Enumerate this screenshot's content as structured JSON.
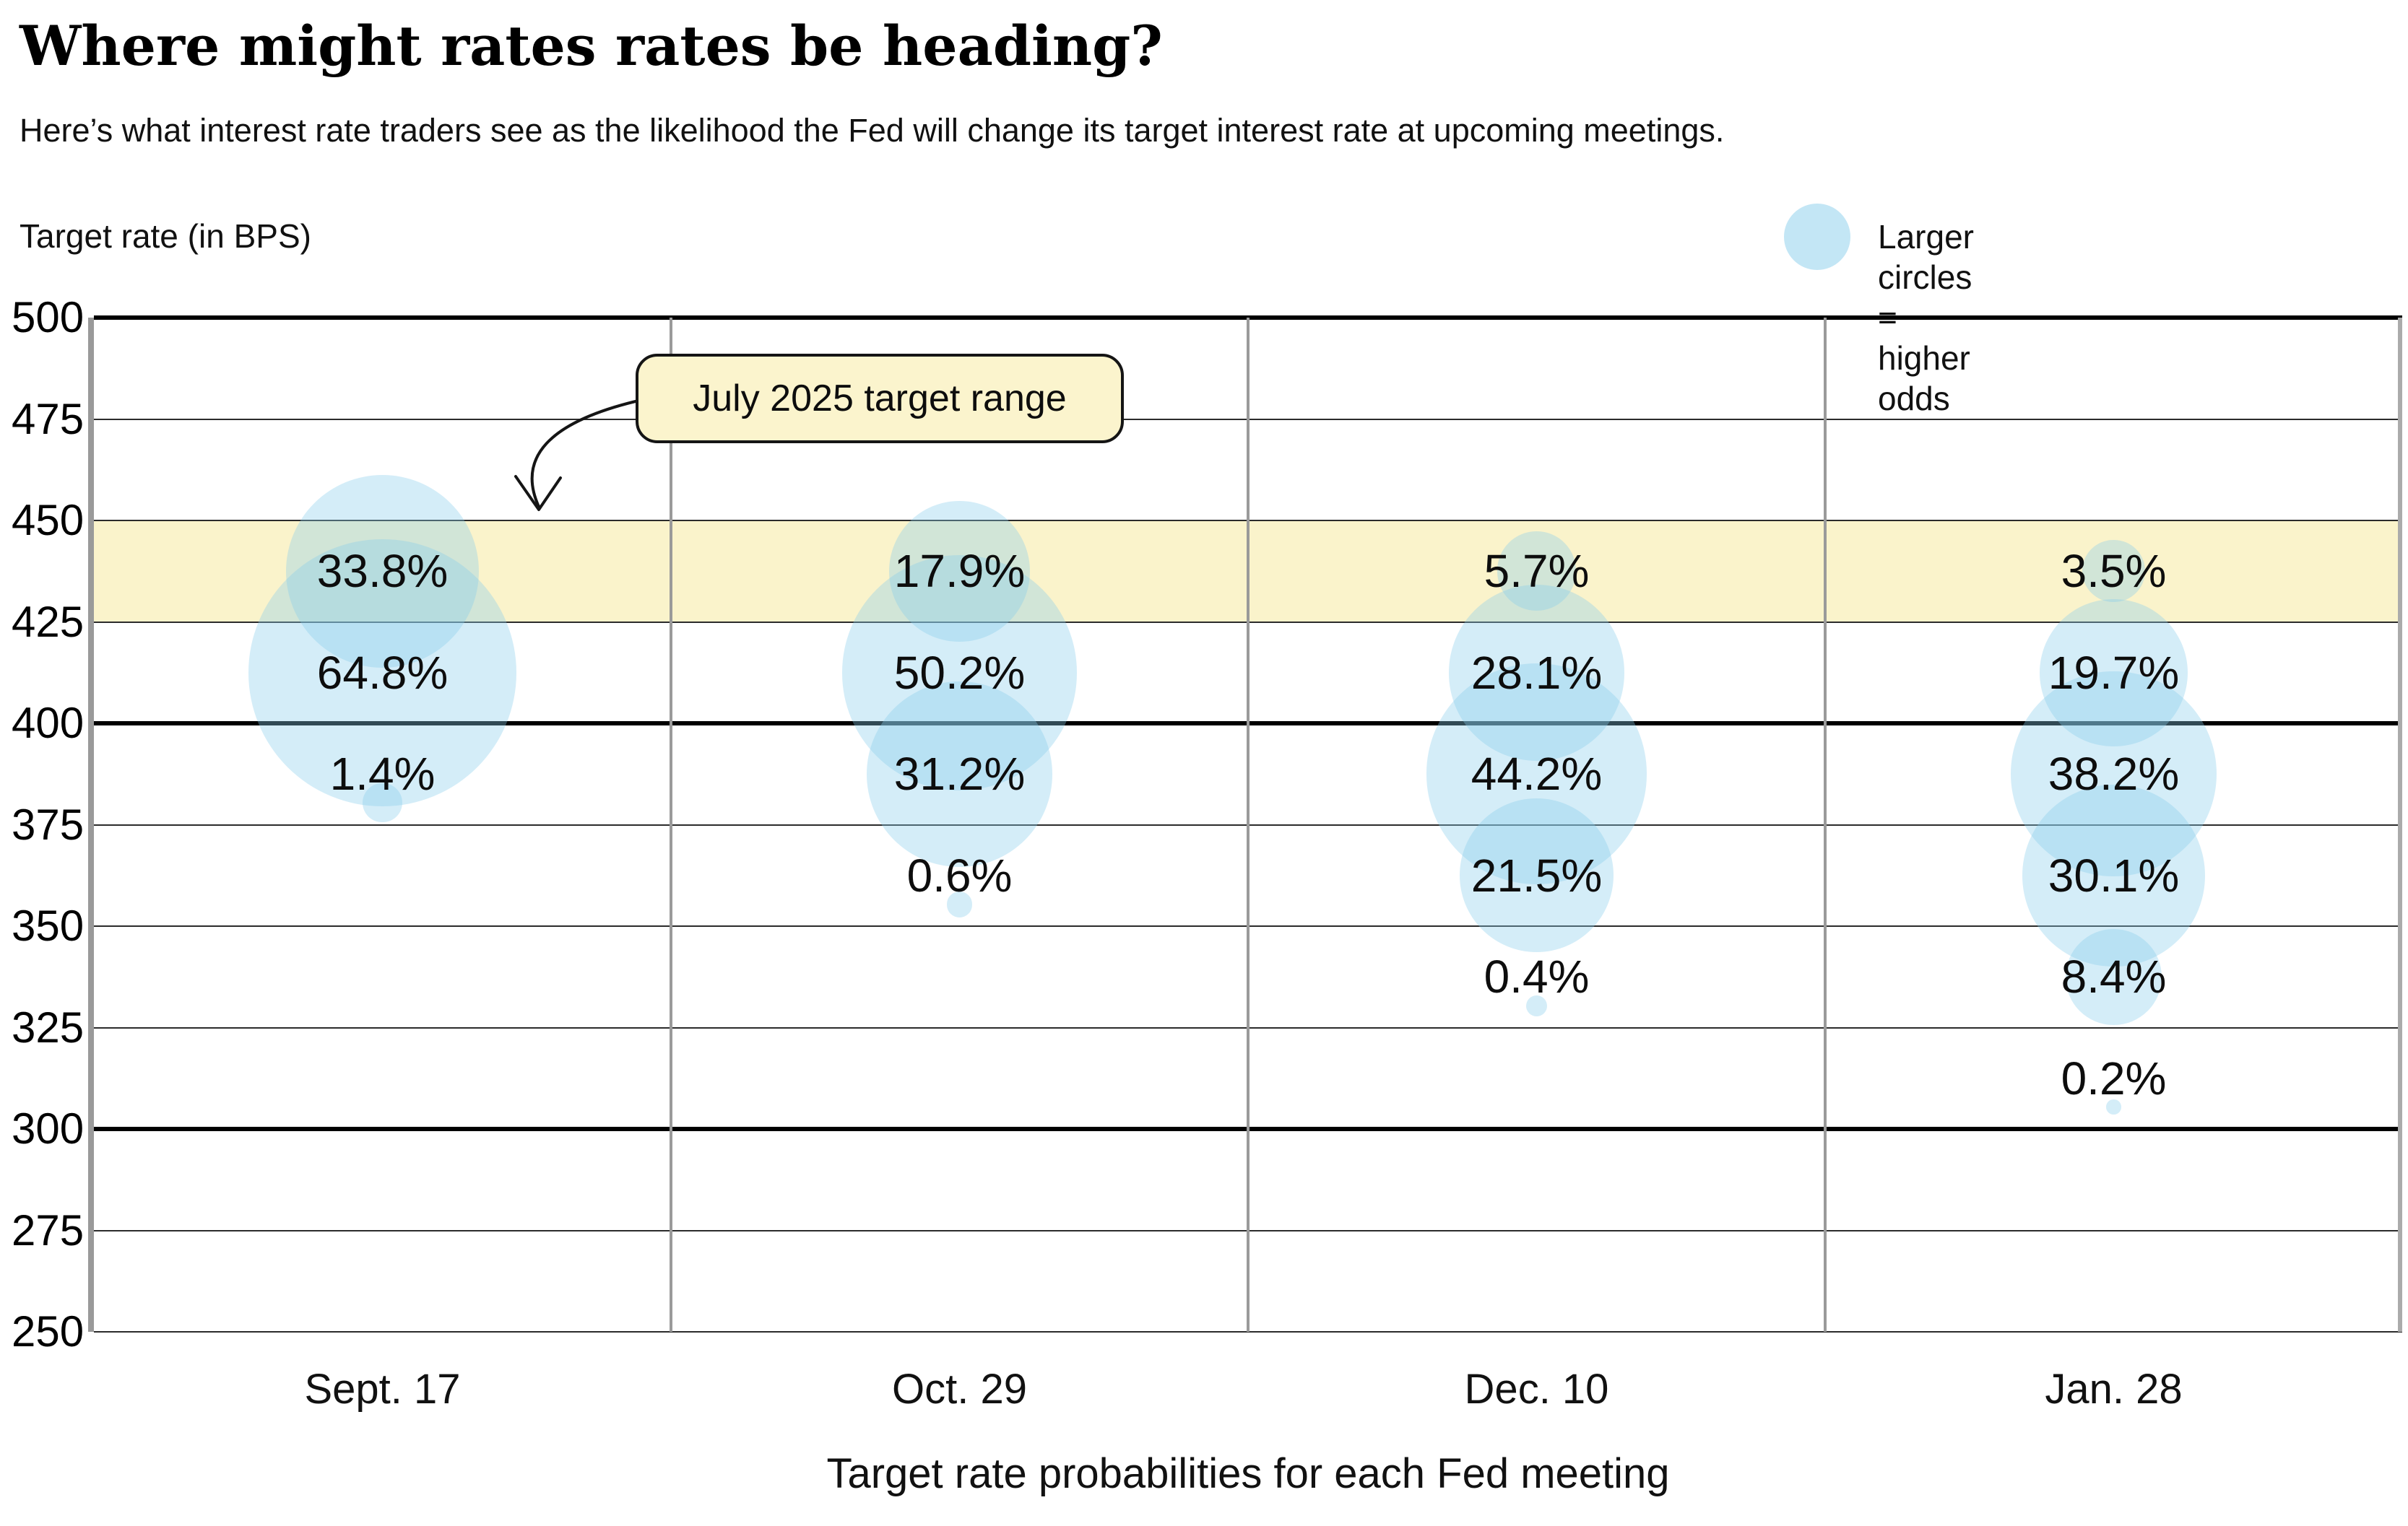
{
  "header": {
    "title": "Where might rates rates be heading?",
    "subtitle": "Here’s what interest rate traders see as the likelihood the Fed will change its target interest rate at upcoming meetings."
  },
  "legend": {
    "label": "Larger circles = higher odds"
  },
  "annotation": {
    "label": "July 2025 target range"
  },
  "chart_data": {
    "type": "scatter",
    "subtype": "bubble",
    "title": "Where might rates rates be heading?",
    "ylabel": "Target rate (in BPS)",
    "caption": "Target rate probabilities for each Fed meeting",
    "y_axis": {
      "min": 250,
      "max": 500,
      "step": 25,
      "emphasized_ticks": [
        500,
        400,
        300
      ],
      "ticks": [
        500,
        475,
        450,
        425,
        400,
        375,
        350,
        325,
        300,
        275,
        250
      ]
    },
    "band": {
      "from_bps": 425,
      "to_bps": 450,
      "label": "July 2025 target range"
    },
    "legend_note": "Larger circles = higher odds",
    "categories": [
      "Sept. 17",
      "Oct. 29",
      "Dec. 10",
      "Jan. 28"
    ],
    "series": [
      {
        "name": "Sept. 17",
        "points": [
          {
            "bps": 437.5,
            "pct": 33.8
          },
          {
            "bps": 412.5,
            "pct": 64.8
          },
          {
            "bps": 387.5,
            "pct": 1.4
          }
        ]
      },
      {
        "name": "Oct. 29",
        "points": [
          {
            "bps": 437.5,
            "pct": 17.9
          },
          {
            "bps": 412.5,
            "pct": 50.2
          },
          {
            "bps": 387.5,
            "pct": 31.2
          },
          {
            "bps": 362.5,
            "pct": 0.6
          }
        ]
      },
      {
        "name": "Dec. 10",
        "points": [
          {
            "bps": 437.5,
            "pct": 5.7
          },
          {
            "bps": 412.5,
            "pct": 28.1
          },
          {
            "bps": 387.5,
            "pct": 44.2
          },
          {
            "bps": 362.5,
            "pct": 21.5
          },
          {
            "bps": 337.5,
            "pct": 0.4
          }
        ]
      },
      {
        "name": "Jan. 28",
        "points": [
          {
            "bps": 437.5,
            "pct": 3.5
          },
          {
            "bps": 412.5,
            "pct": 19.7
          },
          {
            "bps": 387.5,
            "pct": 38.2
          },
          {
            "bps": 362.5,
            "pct": 30.1
          },
          {
            "bps": 337.5,
            "pct": 8.4
          },
          {
            "bps": 312.5,
            "pct": 0.2
          }
        ]
      }
    ],
    "colors": {
      "bubble": "rgba(135, 206, 235, 0.36)",
      "legend_bubble": "rgba(135, 206, 235, 0.50)",
      "band": "#faf3cb",
      "annotation_fill": "#fbf4cd",
      "grid_thin": "#2b2b2b",
      "grid_thick": "#000000",
      "separator": "#9a9a9a"
    }
  }
}
